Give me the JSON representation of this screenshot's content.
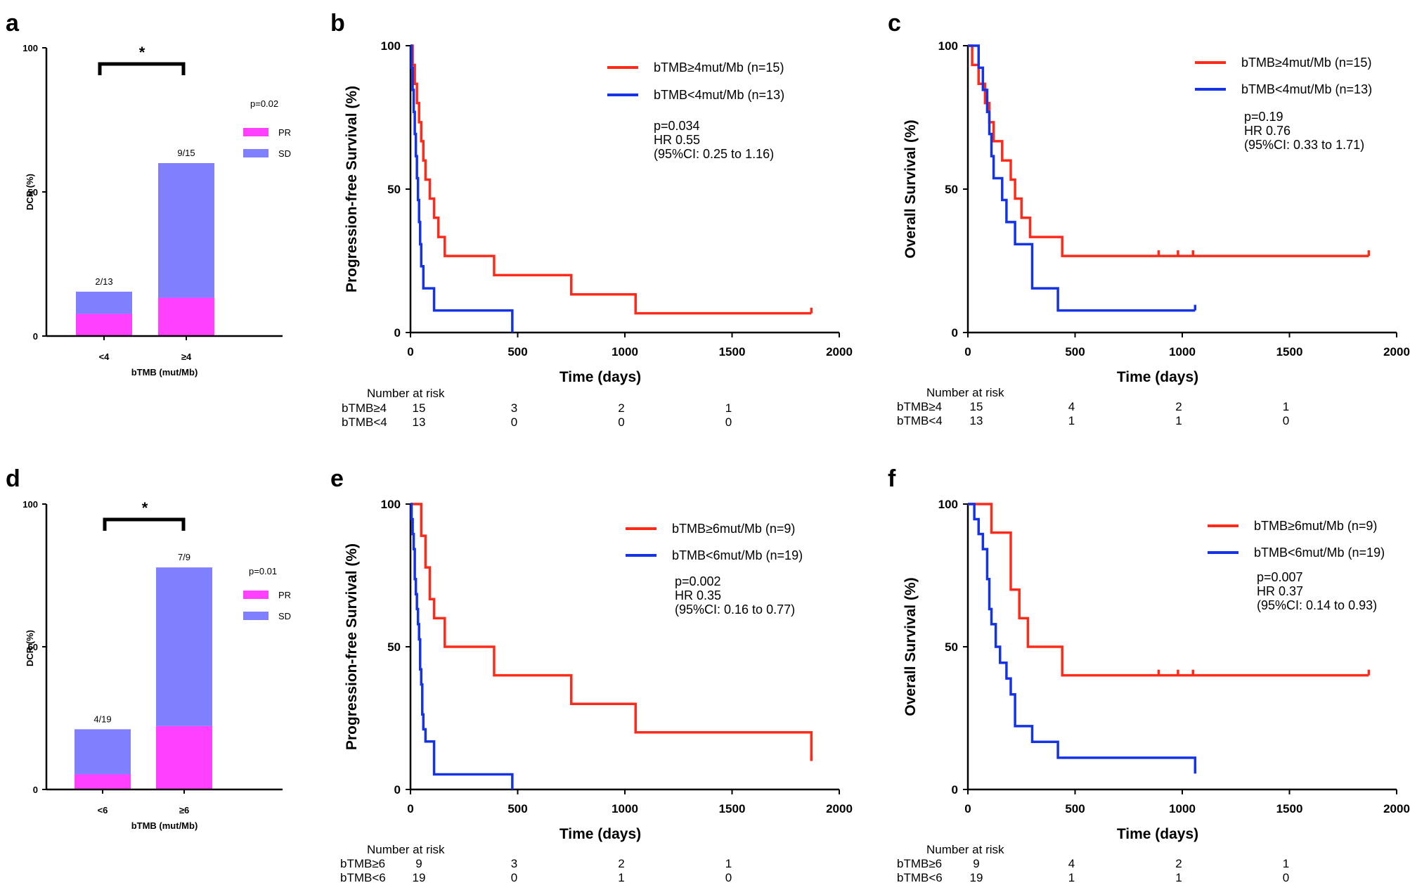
{
  "chart_data": [
    {
      "id": "a",
      "type": "bar",
      "panel_letter": "a",
      "categories": [
        "<4",
        "≥4"
      ],
      "series": [
        {
          "name": "PR",
          "values": [
            7.7,
            13.3
          ],
          "color": "#ff40ff"
        },
        {
          "name": "SD",
          "values": [
            7.7,
            46.7
          ],
          "color": "#8080ff"
        }
      ],
      "bar_labels": [
        "2/13",
        "9/15"
      ],
      "xlabel": "bTMB (mut/Mb)",
      "ylabel": "DCR (%)",
      "ylim": [
        0,
        100
      ],
      "yticks": [
        "0",
        "50",
        "100"
      ],
      "pvalue": "p=0.02",
      "significance": "*",
      "legend": [
        "PR",
        "SD"
      ]
    },
    {
      "id": "b",
      "type": "line",
      "panel_letter": "b",
      "ylabel": "Progression-free Survival (%)",
      "xlabel": "Time (days)",
      "xlim": [
        0,
        2000
      ],
      "ylim": [
        0,
        100
      ],
      "xticks": [
        "0",
        "500",
        "1000",
        "1500",
        "2000"
      ],
      "yticks": [
        "0",
        "50",
        "100"
      ],
      "series": [
        {
          "name": "bTMB≥4mut/Mb (n=15)",
          "color": "#ff2a1a",
          "x": [
            0,
            10,
            20,
            30,
            40,
            50,
            60,
            70,
            90,
            110,
            130,
            160,
            390,
            750,
            1050,
            1870
          ],
          "y": [
            100,
            93.3,
            86.7,
            80,
            73.3,
            66.7,
            60,
            53.3,
            46.7,
            40,
            33.3,
            26.7,
            20,
            13.3,
            6.7,
            6.7
          ],
          "censor": [
            [
              1870,
              6.7
            ]
          ]
        },
        {
          "name": "bTMB<4mut/Mb (n=13)",
          "color": "#1432e6",
          "x": [
            0,
            5,
            10,
            15,
            20,
            25,
            30,
            35,
            40,
            45,
            50,
            60,
            110,
            475
          ],
          "y": [
            100,
            92.3,
            84.6,
            76.9,
            69.2,
            61.5,
            53.8,
            46.2,
            38.5,
            30.8,
            23.1,
            15.4,
            7.7,
            0
          ],
          "censor": []
        }
      ],
      "stats": [
        "p=0.034",
        "HR 0.55",
        "(95%CI: 0.25 to 1.16)"
      ],
      "risk_header": "Number at risk",
      "risk_rows": [
        {
          "label": "bTMB≥4",
          "values": [
            "15",
            "3",
            "2",
            "1"
          ]
        },
        {
          "label": "bTMB<4",
          "values": [
            "13",
            "0",
            "0",
            "0"
          ]
        }
      ],
      "risk_times": [
        0,
        500,
        1000,
        1500
      ]
    },
    {
      "id": "c",
      "type": "line",
      "panel_letter": "c",
      "ylabel": "Overall Survival (%)",
      "xlabel": "Time (days)",
      "xlim": [
        0,
        2000
      ],
      "ylim": [
        0,
        100
      ],
      "xticks": [
        "0",
        "500",
        "1000",
        "1500",
        "2000"
      ],
      "yticks": [
        "0",
        "50",
        "100"
      ],
      "series": [
        {
          "name": "bTMB≥4mut/Mb (n=15)",
          "color": "#ff2a1a",
          "x": [
            0,
            20,
            50,
            80,
            100,
            120,
            160,
            200,
            220,
            250,
            290,
            440,
            1870
          ],
          "y": [
            100,
            93.3,
            86.7,
            80,
            73.3,
            66.7,
            60,
            53.3,
            46.7,
            40,
            33.3,
            26.7,
            26.7
          ],
          "censor": [
            [
              890,
              26.7
            ],
            [
              980,
              26.7
            ],
            [
              1050,
              26.7
            ],
            [
              1870,
              26.7
            ]
          ]
        },
        {
          "name": "bTMB<4mut/Mb (n=13)",
          "color": "#1432e6",
          "x": [
            0,
            50,
            70,
            90,
            100,
            110,
            120,
            160,
            180,
            220,
            300,
            420,
            1060
          ],
          "y": [
            100,
            92.3,
            84.6,
            76.9,
            69.2,
            61.5,
            53.8,
            46.2,
            38.5,
            30.8,
            15.4,
            7.7,
            7.7
          ],
          "censor": [
            [
              1060,
              7.7
            ]
          ]
        }
      ],
      "stats": [
        "p=0.19",
        "HR 0.76",
        "(95%CI: 0.33 to 1.71)"
      ],
      "risk_header": "Number at risk",
      "risk_rows": [
        {
          "label": "bTMB≥4",
          "values": [
            "15",
            "4",
            "2",
            "1"
          ]
        },
        {
          "label": "bTMB<4",
          "values": [
            "13",
            "1",
            "1",
            "0"
          ]
        }
      ],
      "risk_times": [
        0,
        500,
        1000,
        1500
      ]
    },
    {
      "id": "d",
      "type": "bar",
      "panel_letter": "d",
      "categories": [
        "<6",
        "≥6"
      ],
      "series": [
        {
          "name": "PR",
          "values": [
            5.3,
            22.2
          ],
          "color": "#ff40ff"
        },
        {
          "name": "SD",
          "values": [
            15.8,
            55.6
          ],
          "color": "#8080ff"
        }
      ],
      "bar_labels": [
        "4/19",
        "7/9"
      ],
      "xlabel": "bTMB (mut/Mb)",
      "ylabel": "DCR (%)",
      "ylim": [
        0,
        100
      ],
      "yticks": [
        "0",
        "50",
        "100"
      ],
      "pvalue": "p=0.01",
      "significance": "*",
      "legend": [
        "PR",
        "SD"
      ]
    },
    {
      "id": "e",
      "type": "line",
      "panel_letter": "e",
      "ylabel": "Progression-free Survival (%)",
      "xlabel": "Time (days)",
      "xlim": [
        0,
        2000
      ],
      "ylim": [
        0,
        100
      ],
      "xticks": [
        "0",
        "500",
        "1000",
        "1500",
        "2000"
      ],
      "yticks": [
        "0",
        "50",
        "100"
      ],
      "series": [
        {
          "name": "bTMB≥6mut/Mb  (n=9)",
          "color": "#ff2a1a",
          "x": [
            0,
            50,
            70,
            90,
            110,
            160,
            390,
            750,
            1050,
            1870
          ],
          "y": [
            100,
            88.9,
            77.8,
            66.7,
            60,
            50,
            40,
            30,
            20,
            10
          ],
          "censor": [
            [
              1870,
              10
            ]
          ]
        },
        {
          "name": "bTMB<6mut/Mb  (n=19)",
          "color": "#1432e6",
          "x": [
            0,
            5,
            10,
            15,
            20,
            25,
            30,
            35,
            40,
            45,
            50,
            55,
            60,
            70,
            110,
            475
          ],
          "y": [
            100,
            94.7,
            89.5,
            84.2,
            73.7,
            68.4,
            63.2,
            57.9,
            52.6,
            42.1,
            36.8,
            26.3,
            21.1,
            16.8,
            5.3,
            0
          ],
          "censor": []
        }
      ],
      "stats": [
        "p=0.002",
        "HR 0.35",
        "(95%CI: 0.16 to 0.77)"
      ],
      "risk_header": "Number at risk",
      "risk_rows": [
        {
          "label": "bTMB≥6",
          "values": [
            "9",
            "3",
            "2",
            "1"
          ]
        },
        {
          "label": "bTMB<6",
          "values": [
            "19",
            "0",
            "1",
            "0"
          ]
        }
      ],
      "risk_times": [
        0,
        500,
        1000,
        1500
      ]
    },
    {
      "id": "f",
      "type": "line",
      "panel_letter": "f",
      "ylabel": "Overall Survival (%)",
      "xlabel": "Time (days)",
      "xlim": [
        0,
        2000
      ],
      "ylim": [
        0,
        100
      ],
      "xticks": [
        "0",
        "500",
        "1000",
        "1500",
        "2000"
      ],
      "yticks": [
        "0",
        "50",
        "100"
      ],
      "series": [
        {
          "name": "bTMB≥6mut/Mb  (n=9)",
          "color": "#ff2a1a",
          "x": [
            0,
            110,
            200,
            240,
            280,
            440,
            1870
          ],
          "y": [
            100,
            90,
            70,
            60,
            50,
            40,
            40
          ],
          "censor": [
            [
              890,
              40
            ],
            [
              980,
              40
            ],
            [
              1050,
              40
            ],
            [
              1870,
              40
            ]
          ]
        },
        {
          "name": "bTMB<6mut/Mb  (n=19)",
          "color": "#1432e6",
          "x": [
            0,
            30,
            50,
            70,
            90,
            100,
            110,
            130,
            150,
            180,
            200,
            220,
            300,
            420,
            1060
          ],
          "y": [
            100,
            94.7,
            89.5,
            84.2,
            73.7,
            63.2,
            57.9,
            50,
            44.4,
            38.9,
            33.3,
            22.2,
            16.7,
            11.1,
            5.6
          ],
          "censor": [
            [
              1060,
              5.6
            ]
          ]
        }
      ],
      "stats": [
        "p=0.007",
        "HR 0.37",
        "(95%CI: 0.14 to 0.93)"
      ],
      "risk_header": "Number at risk",
      "risk_rows": [
        {
          "label": "bTMB≥6",
          "values": [
            "9",
            "4",
            "2",
            "1"
          ]
        },
        {
          "label": "bTMB<6",
          "values": [
            "19",
            "1",
            "1",
            "0"
          ]
        }
      ],
      "risk_times": [
        0,
        500,
        1000,
        1500
      ]
    }
  ]
}
